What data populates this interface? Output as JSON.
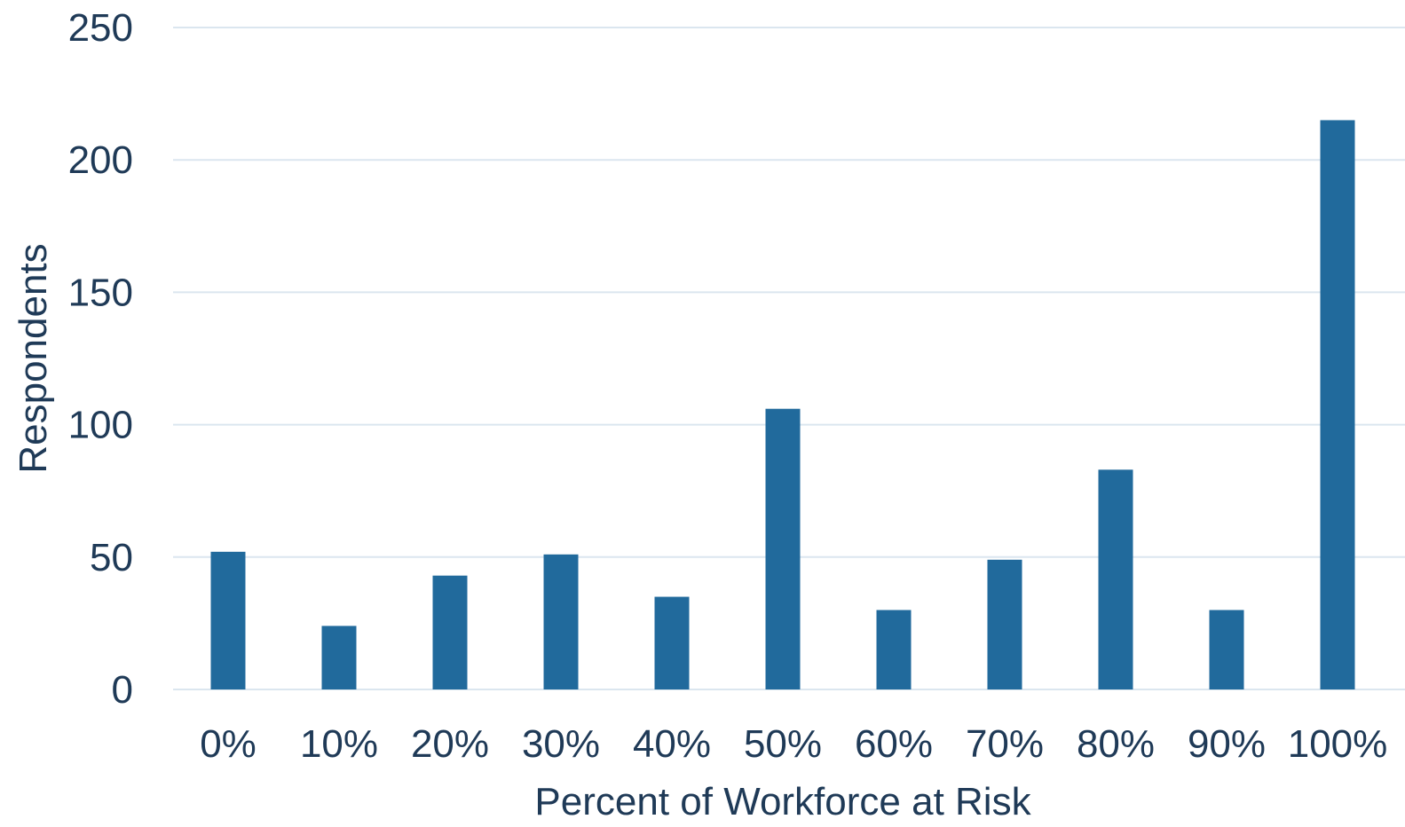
{
  "chart_data": {
    "type": "bar",
    "categories": [
      "0%",
      "10%",
      "20%",
      "30%",
      "40%",
      "50%",
      "60%",
      "70%",
      "80%",
      "90%",
      "100%"
    ],
    "values": [
      52,
      24,
      43,
      51,
      35,
      106,
      30,
      49,
      83,
      30,
      215
    ],
    "title": "",
    "xlabel": "Percent of Workforce at Risk",
    "ylabel": "Respondents",
    "ylim": [
      0,
      250
    ],
    "yticks": [
      0,
      50,
      100,
      150,
      200,
      250
    ],
    "grid": true,
    "legend": "none",
    "colors": {
      "bar": "#216a9c",
      "grid": "#dbe6ef",
      "text": "#1f3a57"
    }
  }
}
